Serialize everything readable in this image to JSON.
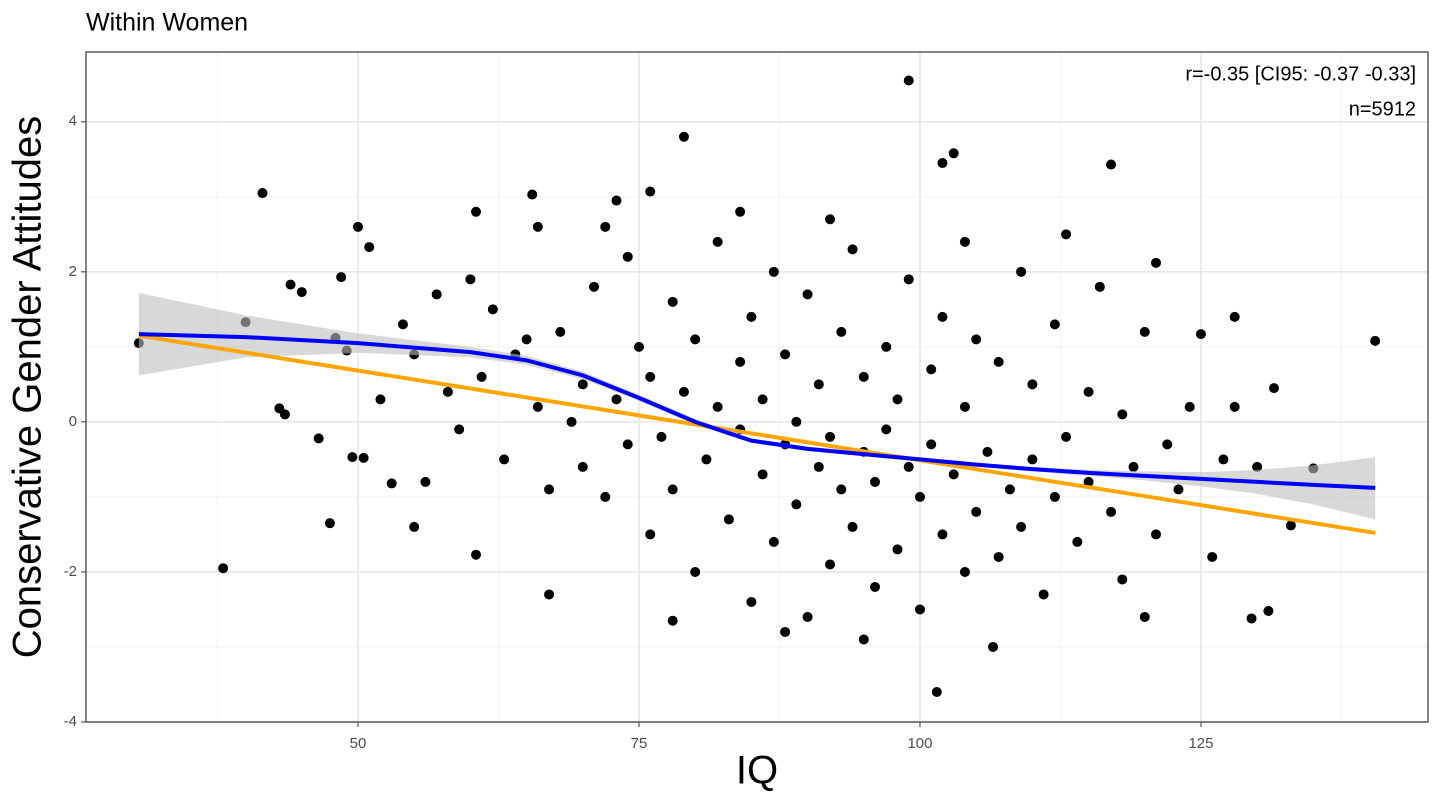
{
  "chart_data": {
    "type": "scatter",
    "title": "Within Women",
    "x_label": "IQ",
    "y_label": "Conservative Gender Attitudes",
    "annotations": [
      "r=-0.35 [CI95: -0.37 -0.33]",
      "n=5912"
    ],
    "xlim": [
      25.8,
      145.2
    ],
    "ylim": [
      -4,
      4.93
    ],
    "xticks": [
      50,
      75,
      100,
      125
    ],
    "yticks": [
      -4,
      -2,
      0,
      2,
      4
    ],
    "xgrid_minor": [
      37.5,
      62.5,
      87.5,
      112.5,
      137.5
    ],
    "ygrid_minor": [
      -3,
      -1,
      1,
      3
    ],
    "grid": true,
    "points": {
      "color": "#000000",
      "x": [
        30.5,
        38,
        40,
        41.5,
        43,
        43.5,
        44,
        45,
        46.5,
        47.5,
        48,
        48.5,
        49,
        50,
        51,
        50.5,
        49.5,
        53,
        55,
        60.5,
        60.5,
        65.5,
        67,
        73,
        76,
        78,
        79,
        99,
        102,
        103,
        101.5,
        106.5,
        117,
        129.5,
        131,
        140.5,
        128,
        131.5,
        135,
        133,
        125,
        121,
        62,
        64,
        66,
        68,
        70,
        70,
        71,
        72,
        73,
        74,
        74,
        75,
        76,
        76,
        77,
        78,
        78,
        79,
        80,
        80,
        81,
        82,
        82,
        83,
        84,
        84,
        85,
        85,
        86,
        86,
        87,
        87,
        88,
        88,
        89,
        89,
        90,
        90,
        91,
        91,
        92,
        92,
        93,
        93,
        94,
        94,
        95,
        95,
        96,
        96,
        97,
        97,
        98,
        98,
        99,
        99,
        100,
        100,
        101,
        101,
        102,
        102,
        103,
        104,
        104,
        105,
        105,
        106,
        107,
        107,
        108,
        109,
        109,
        110,
        110,
        111,
        112,
        112,
        113,
        114,
        115,
        115,
        116,
        117,
        118,
        118,
        119,
        120,
        121,
        122,
        123,
        124,
        126,
        127,
        128,
        130,
        58,
        57,
        56,
        55,
        59,
        61,
        63,
        65,
        67,
        69,
        60,
        54,
        52,
        66,
        72,
        88,
        95,
        84,
        92,
        104,
        113,
        120
      ],
      "y": [
        1.05,
        -1.95,
        1.33,
        3.05,
        0.18,
        0.1,
        1.83,
        1.73,
        -0.22,
        -1.35,
        1.12,
        1.93,
        0.95,
        2.6,
        2.33,
        -0.48,
        -0.47,
        -0.82,
        -1.4,
        -1.77,
        2.8,
        3.03,
        -2.3,
        2.95,
        3.07,
        -2.65,
        3.8,
        4.55,
        3.45,
        3.58,
        -3.6,
        -3.0,
        3.43,
        -2.62,
        -2.52,
        1.08,
        1.4,
        0.45,
        -0.62,
        -1.38,
        1.17,
        2.12,
        1.5,
        0.9,
        0.2,
        1.2,
        0.5,
        -0.6,
        1.8,
        -1.0,
        0.3,
        2.2,
        -0.3,
        1.0,
        -1.5,
        0.6,
        -0.2,
        1.6,
        -0.9,
        0.4,
        -2.0,
        1.1,
        -0.5,
        0.2,
        2.4,
        -1.3,
        0.8,
        -0.1,
        -2.4,
        1.4,
        -0.7,
        0.3,
        -1.6,
        2.0,
        -0.3,
        0.9,
        -1.1,
        0.0,
        -2.6,
        1.7,
        -0.6,
        0.5,
        -1.9,
        -0.2,
        1.2,
        -0.9,
        2.3,
        -1.4,
        -0.4,
        0.6,
        -2.2,
        -0.8,
        1.0,
        -0.1,
        -1.7,
        0.3,
        -0.6,
        1.9,
        -2.5,
        -1.0,
        0.7,
        -0.3,
        -1.5,
        1.4,
        -0.7,
        -2.0,
        0.2,
        -1.2,
        1.1,
        -0.4,
        -1.8,
        0.8,
        -0.9,
        2.0,
        -1.4,
        -0.5,
        0.5,
        -2.3,
        -1.0,
        1.3,
        -0.2,
        -1.6,
        0.4,
        -0.8,
        1.8,
        -1.2,
        -2.1,
        0.1,
        -0.6,
        1.2,
        -1.5,
        -0.3,
        -0.9,
        0.2,
        -1.8,
        -0.5,
        0.2,
        -0.6,
        0.4,
        1.7,
        -0.8,
        0.9,
        -0.1,
        0.6,
        -0.5,
        1.1,
        -0.9,
        0.0,
        1.9,
        1.3,
        0.3,
        2.6,
        2.6,
        -2.8,
        -2.9,
        2.8,
        2.7,
        2.4,
        2.5,
        -2.6
      ]
    },
    "band": {
      "color": "#bebebe",
      "x": [
        30.5,
        40,
        50,
        60,
        65,
        70,
        75,
        80,
        85,
        90,
        95,
        100,
        105,
        110,
        115,
        120,
        125,
        130,
        135,
        140.5
      ],
      "upper": [
        1.72,
        1.42,
        1.18,
        1.0,
        0.88,
        0.67,
        0.36,
        0.04,
        -0.22,
        -0.33,
        -0.41,
        -0.48,
        -0.55,
        -0.6,
        -0.64,
        -0.66,
        -0.67,
        -0.64,
        -0.58,
        -0.47
      ],
      "lower": [
        0.62,
        0.86,
        0.92,
        0.86,
        0.76,
        0.57,
        0.28,
        -0.04,
        -0.28,
        -0.39,
        -0.46,
        -0.53,
        -0.6,
        -0.66,
        -0.72,
        -0.78,
        -0.86,
        -0.96,
        -1.1,
        -1.3
      ]
    },
    "lines": [
      {
        "color": "#ffa500",
        "x": [
          30.5,
          140.5
        ],
        "y": [
          1.15,
          -1.48
        ]
      },
      {
        "color": "#0000ff",
        "x": [
          30.5,
          40,
          50,
          60,
          65,
          70,
          75,
          80,
          85,
          90,
          95,
          100,
          105,
          110,
          115,
          120,
          125,
          130,
          135,
          140.5
        ],
        "y": [
          1.17,
          1.13,
          1.05,
          0.93,
          0.82,
          0.62,
          0.32,
          0.0,
          -0.25,
          -0.36,
          -0.43,
          -0.5,
          -0.57,
          -0.63,
          -0.68,
          -0.72,
          -0.76,
          -0.8,
          -0.84,
          -0.88
        ]
      }
    ]
  }
}
